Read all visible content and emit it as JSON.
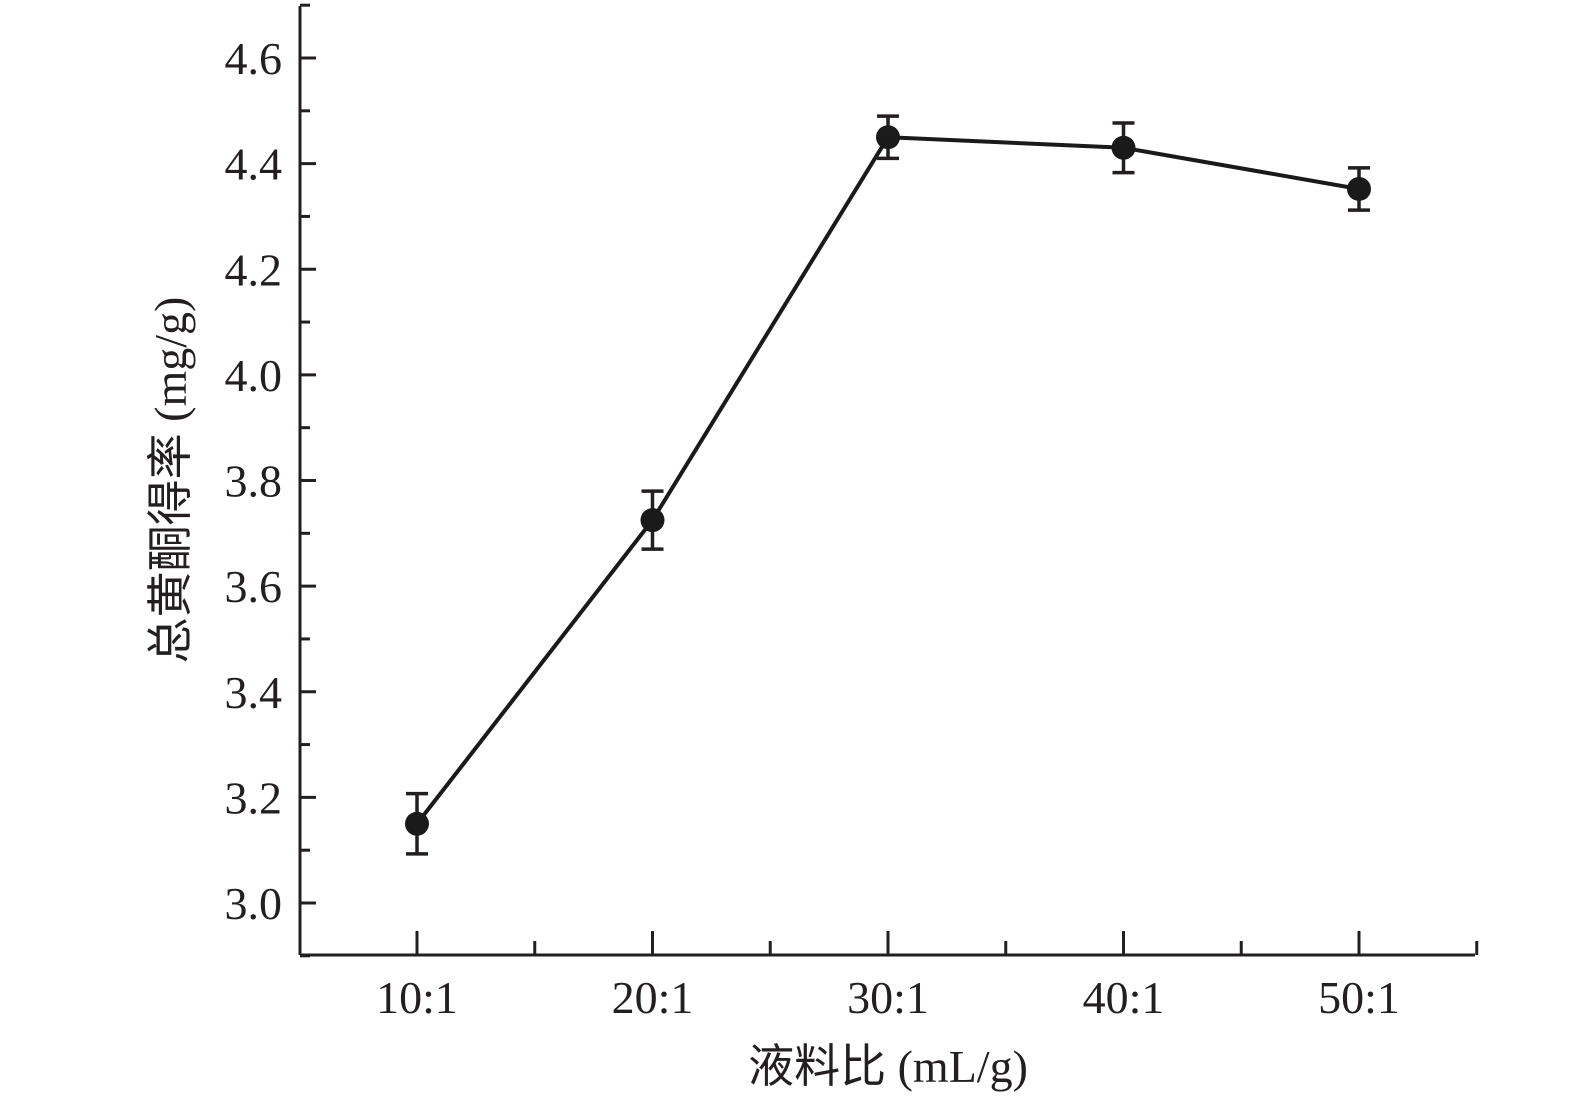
{
  "chart_data": {
    "type": "line",
    "categories": [
      "10:1",
      "20:1",
      "30:1",
      "40:1",
      "50:1"
    ],
    "values": [
      3.15,
      3.725,
      4.45,
      4.43,
      4.352
    ],
    "errors": [
      0.057,
      0.055,
      0.04,
      0.047,
      0.04
    ],
    "xlabel": "液料比 (mL/g)",
    "ylabel": "总黄酮得率 (mg/g)",
    "ylim": [
      2.9,
      4.7
    ],
    "yticks": [
      3.0,
      3.2,
      3.4,
      3.6,
      3.8,
      4.0,
      4.2,
      4.4,
      4.6
    ],
    "ytick_labels": [
      "3.0",
      "3.2",
      "3.4",
      "3.6",
      "3.8",
      "4.0",
      "4.2",
      "4.4",
      "4.6"
    ],
    "grid": false,
    "line_color": "#1a1a1a",
    "marker": "filled-circle"
  }
}
